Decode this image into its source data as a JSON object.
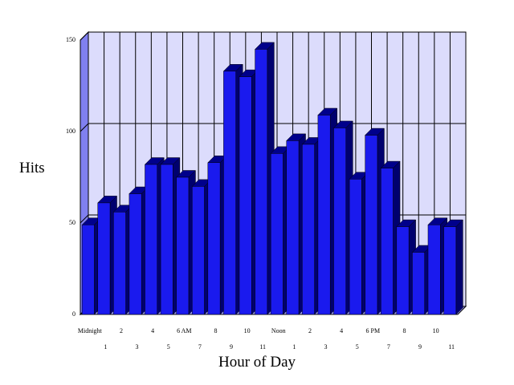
{
  "chart_data": {
    "type": "bar",
    "xlabel": "Hour of Day",
    "ylabel": "Hits",
    "ylim": [
      0,
      150
    ],
    "yticks": [
      0,
      50,
      100,
      150
    ],
    "grid": true,
    "categories": [
      "Midnight",
      "1",
      "2",
      "3",
      "4",
      "5",
      "6 AM",
      "7",
      "8",
      "9",
      "10",
      "11",
      "Noon",
      "1",
      "2",
      "3",
      "4",
      "5",
      "6 PM",
      "7",
      "8",
      "9",
      "10",
      "11"
    ],
    "values": [
      49,
      61,
      56,
      66,
      82,
      82,
      75,
      70,
      83,
      133,
      130,
      145,
      88,
      95,
      93,
      109,
      102,
      74,
      98,
      80,
      48,
      34,
      49,
      48
    ],
    "colors": {
      "bar_front": "#1a1aee",
      "bar_top": "#00008b",
      "bar_side": "#00006e",
      "wall": "#dcdcfc",
      "wall_side": "#8080f0",
      "floor": "#9a9af6",
      "line": "#000000"
    }
  }
}
